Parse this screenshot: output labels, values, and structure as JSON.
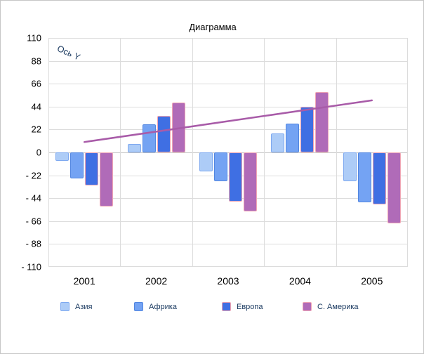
{
  "chart_data": {
    "type": "bar",
    "title": "Диаграмма",
    "y_axis_label": "Ось Y",
    "categories": [
      "2001",
      "2002",
      "2003",
      "2004",
      "2005"
    ],
    "series": [
      {
        "name": "Азия",
        "color": "#ADCCF7",
        "border": "#7EA9F0",
        "values": [
          -8,
          8,
          -18,
          18,
          -28
        ]
      },
      {
        "name": "Африка",
        "color": "#74A3F3",
        "border": "#5286E0",
        "values": [
          -25,
          27,
          -28,
          28,
          -48
        ]
      },
      {
        "name": "Европа",
        "color": "#3F6FE3",
        "border": "#F0A2B0",
        "values": [
          -32,
          35,
          -47,
          44,
          -50
        ]
      },
      {
        "name": "С. Америка",
        "color": "#B06BB8",
        "border": "#F1A7B5",
        "values": [
          -52,
          48,
          -57,
          58,
          -68
        ]
      }
    ],
    "trendline": {
      "color": "#A85BA8",
      "start_value": 10,
      "end_value": 50
    },
    "ylim": [
      -110,
      110
    ],
    "ytick_step": 22,
    "ytick_labels": [
      "110",
      "88",
      "66",
      "44",
      "22",
      "0",
      "- 22",
      "- 44",
      "- 66",
      "- 88",
      "- 110"
    ],
    "grid": true,
    "legend_position": "bottom"
  }
}
